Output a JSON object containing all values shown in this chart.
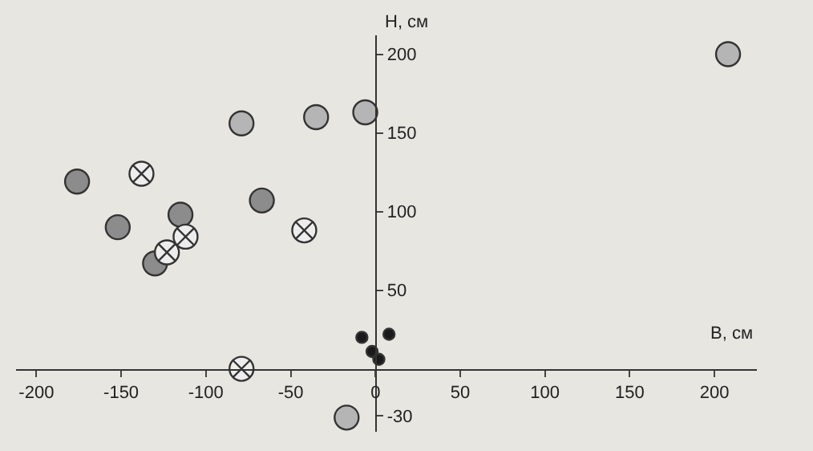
{
  "chart_data": {
    "type": "scatter",
    "xlabel": "В, см",
    "ylabel": "Н, см",
    "xlim": [
      -212,
      225
    ],
    "ylim": [
      -40,
      212
    ],
    "xticks": [
      -200,
      -150,
      -100,
      -50,
      0,
      50,
      100,
      150,
      200
    ],
    "yticks": [
      -30,
      50,
      100,
      150,
      200
    ],
    "grid": false,
    "series": [
      {
        "color": "#8c8c8c",
        "marker": "circle",
        "x": [
          -176,
          -152,
          -115,
          -130,
          -67
        ],
        "values": [
          119,
          90,
          98,
          67,
          107
        ]
      },
      {
        "color": "#ededed",
        "marker": "cross",
        "x": [
          -138,
          -112,
          -123,
          -42,
          -79
        ],
        "values": [
          124,
          84,
          74,
          88,
          0
        ]
      },
      {
        "color": "#b5b5b5",
        "marker": "circle",
        "x": [
          -79,
          -35,
          -6,
          -17,
          208
        ],
        "values": [
          156,
          160,
          163,
          -31,
          200
        ]
      },
      {
        "color": "#1a1a1a",
        "marker": "circle",
        "x": [
          -8,
          8,
          -2,
          2
        ],
        "values": [
          20,
          22,
          11,
          6
        ]
      }
    ]
  }
}
